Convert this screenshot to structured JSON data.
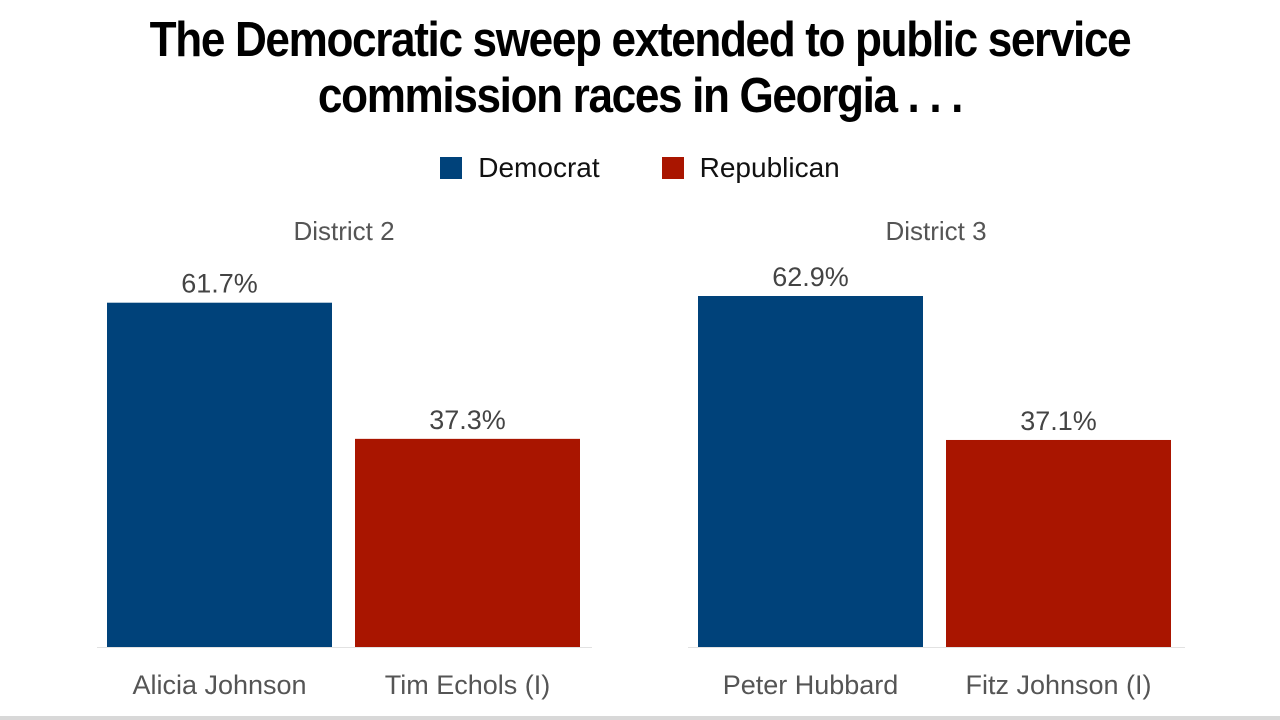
{
  "chart_data": {
    "type": "bar",
    "title": [
      "The Democratic sweep extended to public service",
      "commission races in Georgia . . ."
    ],
    "legend": [
      {
        "name": "Democrat",
        "color": "#00427a"
      },
      {
        "name": "Republican",
        "color": "#a91500"
      }
    ],
    "ylim": [
      0,
      65
    ],
    "panels": [
      {
        "title": "District 2",
        "categories": [
          "Alicia Johnson",
          "Tim Echols (I)"
        ],
        "values": [
          61.7,
          37.3
        ],
        "labels": [
          "61.7%",
          "37.3%"
        ],
        "parties": [
          "Democrat",
          "Republican"
        ]
      },
      {
        "title": "District 3",
        "categories": [
          "Peter Hubbard",
          "Fitz Johnson (I)"
        ],
        "values": [
          62.9,
          37.1
        ],
        "labels": [
          "62.9%",
          "37.1%"
        ],
        "parties": [
          "Democrat",
          "Republican"
        ]
      }
    ]
  }
}
